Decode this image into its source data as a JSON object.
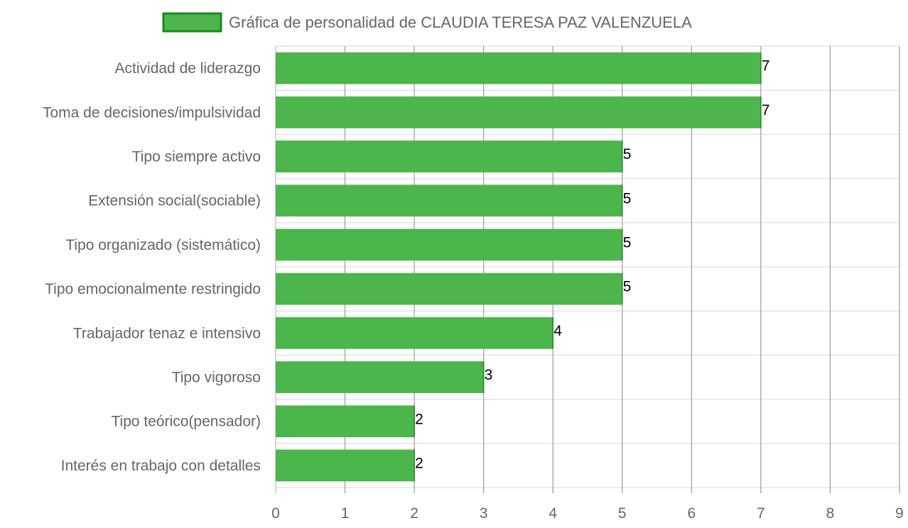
{
  "chart_data": {
    "type": "bar",
    "orientation": "horizontal",
    "title": "",
    "xlabel": "",
    "ylabel": "",
    "categories": [
      "Actividad de liderazgo",
      "Toma de decisiones/impulsividad",
      "Tipo siempre activo",
      "Extensión social(sociable)",
      "Tipo organizado (sistemático)",
      "Tipo emocionalmente restringido",
      "Trabajador tenaz e intensivo",
      "Tipo vigoroso",
      "Tipo teórico(pensador)",
      "Interés en trabajo con detalles"
    ],
    "series": [
      {
        "name": "Gráfica de personalidad de CLAUDIA TERESA PAZ VALENZUELA",
        "values": [
          7,
          7,
          5,
          5,
          5,
          5,
          4,
          3,
          2,
          2
        ],
        "color": "#4cb64c",
        "border_color": "#1a8a1a"
      }
    ],
    "xlim": [
      0,
      9
    ],
    "x_ticks": [
      "0",
      "1",
      "2",
      "3",
      "4",
      "5",
      "6",
      "7",
      "8",
      "9"
    ],
    "grid": true,
    "legend_position": "top",
    "data_labels": true
  }
}
